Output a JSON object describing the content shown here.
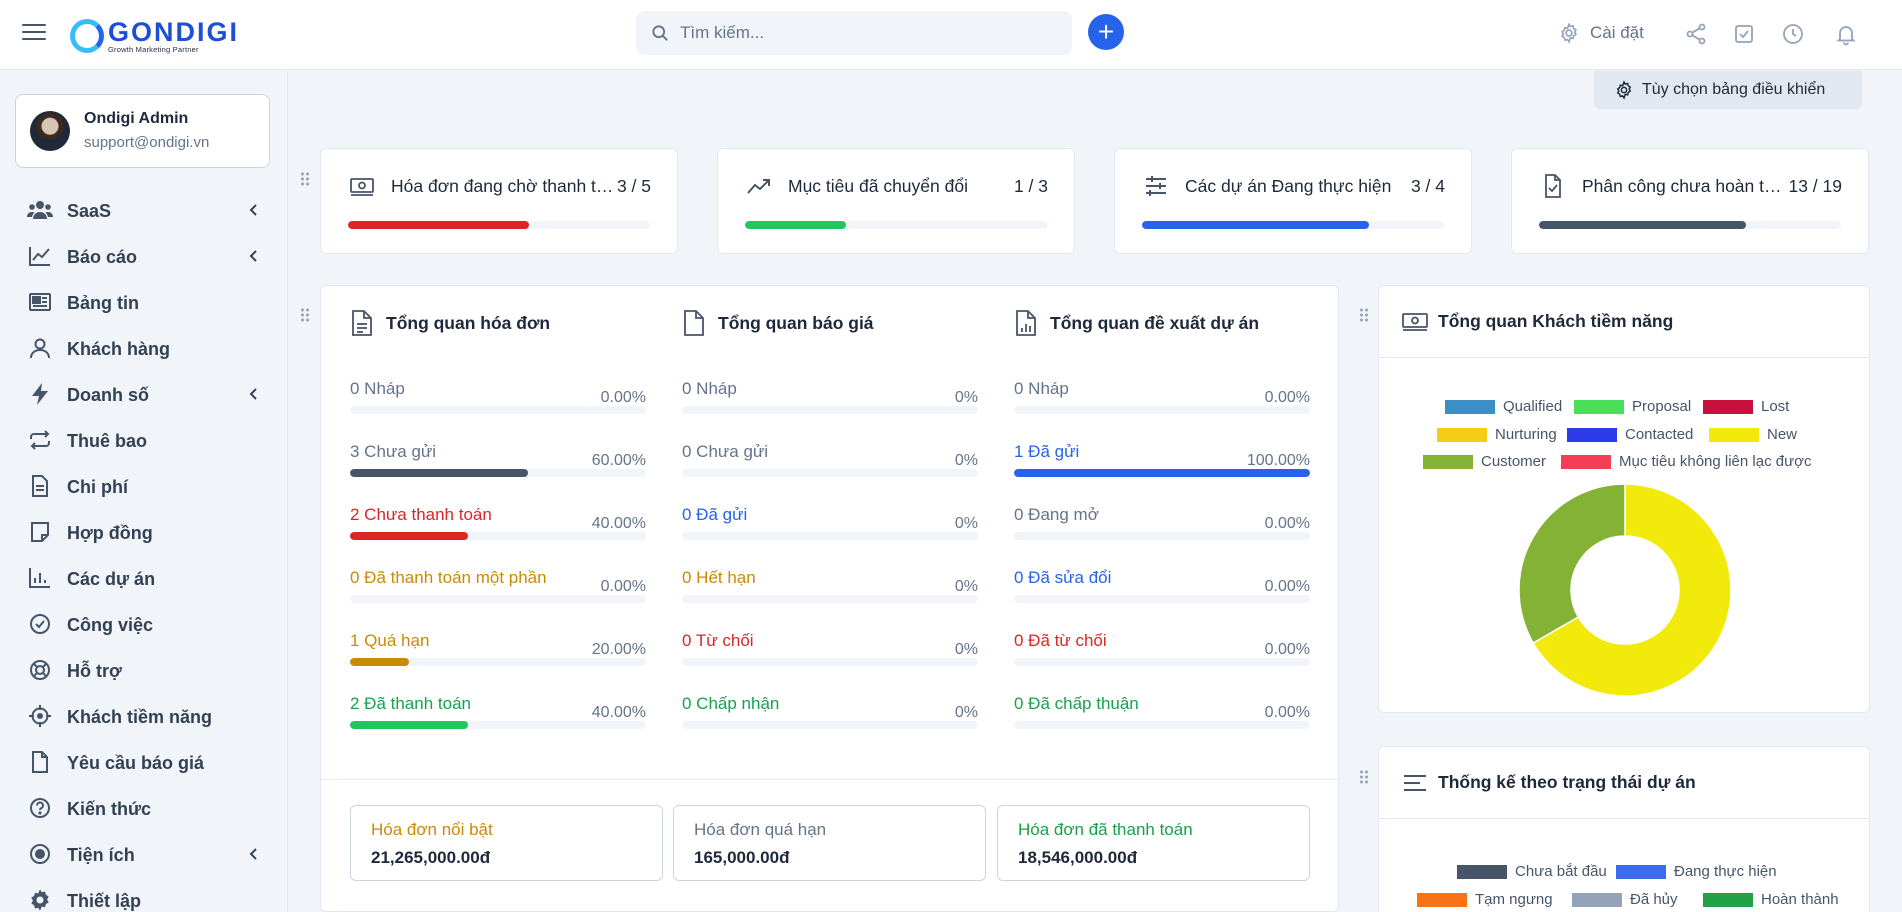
{
  "header": {
    "logo_word": "GONDIGI",
    "logo_tagline": "Growth Marketing Partner",
    "search_placeholder": "Tìm kiếm...",
    "add_label": "+",
    "settings_label": "Cài đặt"
  },
  "profile": {
    "name": "Ondigi Admin",
    "email": "support@ondigi.vn"
  },
  "sidebar": {
    "items": [
      {
        "label": "SaaS",
        "icon": "users-icon",
        "has_submenu": true
      },
      {
        "label": "Báo cáo",
        "icon": "line-chart-icon",
        "has_submenu": true
      },
      {
        "label": "Bảng tin",
        "icon": "newspaper-icon",
        "has_submenu": false
      },
      {
        "label": "Khách hàng",
        "icon": "user-icon",
        "has_submenu": false
      },
      {
        "label": "Doanh số",
        "icon": "bolt-icon",
        "has_submenu": true
      },
      {
        "label": "Thuê bao",
        "icon": "repeat-icon",
        "has_submenu": false
      },
      {
        "label": "Chi phí",
        "icon": "file-icon",
        "has_submenu": false
      },
      {
        "label": "Hợp đồng",
        "icon": "note-icon",
        "has_submenu": false
      },
      {
        "label": "Các dự án",
        "icon": "bar-chart-icon",
        "has_submenu": false
      },
      {
        "label": "Công việc",
        "icon": "check-circle-icon",
        "has_submenu": false
      },
      {
        "label": "Hỗ trợ",
        "icon": "lifebuoy-icon",
        "has_submenu": false
      },
      {
        "label": "Khách tiềm năng",
        "icon": "crosshair-icon",
        "has_submenu": false
      },
      {
        "label": "Yêu cầu báo giá",
        "icon": "file-icon",
        "has_submenu": false
      },
      {
        "label": "Kiến thức",
        "icon": "question-circle-icon",
        "has_submenu": false
      },
      {
        "label": "Tiện ích",
        "icon": "dot-circle-icon",
        "has_submenu": true
      },
      {
        "label": "Thiết lập",
        "icon": "gear-icon",
        "has_submenu": false
      }
    ]
  },
  "dashboard_options_label": "Tùy chọn bảng điều khiển",
  "stats": [
    {
      "title": "Hóa đơn đang chờ thanh toán",
      "value": "3 / 5",
      "progress": 0.6,
      "color": "#dc2626",
      "icon": "money-bill-icon"
    },
    {
      "title": "Mục tiêu đã chuyển đổi",
      "value": "1 / 3",
      "progress": 0.333,
      "color": "#22c55e",
      "icon": "trending-up-icon"
    },
    {
      "title": "Các dự án Đang thực hiện",
      "value": "3 / 4",
      "progress": 0.75,
      "color": "#2563eb",
      "icon": "sliders-icon"
    },
    {
      "title": "Phân công chưa hoàn thành",
      "value": "13 / 19",
      "progress": 0.684,
      "color": "#475569",
      "icon": "file-check-icon"
    }
  ],
  "overview": {
    "columns": [
      {
        "title": "Tổng quan hóa đơn",
        "icon": "file-text-icon",
        "rows": [
          {
            "label": "0 Nháp",
            "percent": "0.00%",
            "value": 0,
            "color": "#64748b",
            "bar": "#475569"
          },
          {
            "label": "3 Chưa gửi",
            "percent": "60.00%",
            "value": 0.6,
            "color": "#64748b",
            "bar": "#475569"
          },
          {
            "label": "2 Chưa thanh toán",
            "percent": "40.00%",
            "value": 0.4,
            "color": "#dc2626",
            "bar": "#dc2626"
          },
          {
            "label": "0 Đã thanh toán một phần",
            "percent": "0.00%",
            "value": 0,
            "color": "#ca8a04",
            "bar": "#ca8a04"
          },
          {
            "label": "1 Quá hạn",
            "percent": "20.00%",
            "value": 0.2,
            "color": "#ca8a04",
            "bar": "#ca8a04"
          },
          {
            "label": "2 Đã thanh toán",
            "percent": "40.00%",
            "value": 0.4,
            "color": "#16a34a",
            "bar": "#22c55e"
          }
        ]
      },
      {
        "title": "Tổng quan báo giá",
        "icon": "file-icon",
        "rows": [
          {
            "label": "0 Nháp",
            "percent": "0%",
            "value": 0,
            "color": "#64748b",
            "bar": "#475569"
          },
          {
            "label": "0 Chưa gửi",
            "percent": "0%",
            "value": 0,
            "color": "#64748b",
            "bar": "#475569"
          },
          {
            "label": "0 Đã gửi",
            "percent": "0%",
            "value": 0,
            "color": "#2563eb",
            "bar": "#2563eb"
          },
          {
            "label": "0 Hết hạn",
            "percent": "0%",
            "value": 0,
            "color": "#ca8a04",
            "bar": "#ca8a04"
          },
          {
            "label": "0 Từ chối",
            "percent": "0%",
            "value": 0,
            "color": "#dc2626",
            "bar": "#dc2626"
          },
          {
            "label": "0 Chấp nhận",
            "percent": "0%",
            "value": 0,
            "color": "#16a34a",
            "bar": "#22c55e"
          }
        ]
      },
      {
        "title": "Tổng quan đề xuất dự án",
        "icon": "file-chart-icon",
        "rows": [
          {
            "label": "0 Nháp",
            "percent": "0.00%",
            "value": 0,
            "color": "#64748b",
            "bar": "#475569"
          },
          {
            "label": "1 Đã gửi",
            "percent": "100.00%",
            "value": 1,
            "color": "#2563eb",
            "bar": "#2563eb"
          },
          {
            "label": "0 Đang mở",
            "percent": "0.00%",
            "value": 0,
            "color": "#64748b",
            "bar": "#475569"
          },
          {
            "label": "0 Đã sửa đổi",
            "percent": "0.00%",
            "value": 0,
            "color": "#2563eb",
            "bar": "#2563eb"
          },
          {
            "label": "0 Đã từ chối",
            "percent": "0.00%",
            "value": 0,
            "color": "#dc2626",
            "bar": "#dc2626"
          },
          {
            "label": "0 Đã chấp thuận",
            "percent": "0.00%",
            "value": 0,
            "color": "#16a34a",
            "bar": "#22c55e"
          }
        ]
      }
    ],
    "summaries": [
      {
        "title": "Hóa đơn nổi bật",
        "value": "21,265,000.00đ",
        "color": "#ca8a04"
      },
      {
        "title": "Hóa đơn quá hạn",
        "value": "165,000.00đ",
        "color": "#64748b"
      },
      {
        "title": "Hóa đơn đã thanh toán",
        "value": "18,546,000.00đ",
        "color": "#16a34a"
      }
    ]
  },
  "leads_panel": {
    "title": "Tổng quan Khách tiềm năng"
  },
  "project_status_panel": {
    "title": "Thống kế theo trạng thái dự án"
  },
  "chart_data": [
    {
      "type": "pie",
      "donut": true,
      "legend_placement": "top",
      "series": [
        {
          "name": "Qualified",
          "value": 0,
          "color": "#3b8fc4"
        },
        {
          "name": "Proposal",
          "value": 0,
          "color": "#4ade5b"
        },
        {
          "name": "Lost",
          "value": 0,
          "color": "#c8103e"
        },
        {
          "name": "Nurturing",
          "value": 0,
          "color": "#f4cd18"
        },
        {
          "name": "Contacted",
          "value": 0,
          "color": "#2b3be8"
        },
        {
          "name": "New",
          "value": 2,
          "color": "#f2ea0a"
        },
        {
          "name": "Customer",
          "value": 1,
          "color": "#84b234"
        },
        {
          "name": "Mục tiêu không liên lạc được",
          "value": 0,
          "color": "#f43e55"
        }
      ]
    },
    {
      "type": "bar",
      "legend_placement": "top",
      "series": [
        {
          "name": "Chưa bắt đầu",
          "color": "#475569"
        },
        {
          "name": "Đang thực hiện",
          "color": "#3b6cf0"
        },
        {
          "name": "Tạm ngưng",
          "color": "#f97316"
        },
        {
          "name": "Đã hủy",
          "color": "#94a3b8"
        },
        {
          "name": "Hoàn thành",
          "color": "#22a046"
        }
      ]
    }
  ]
}
